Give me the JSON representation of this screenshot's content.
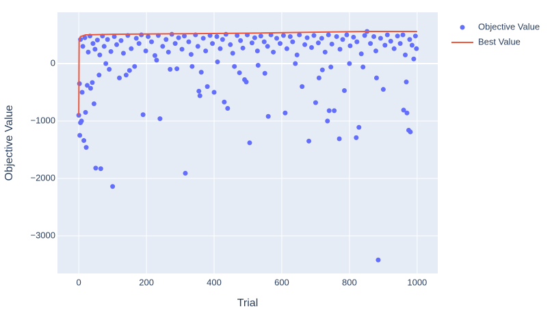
{
  "chart_data": {
    "type": "scatter",
    "xlabel": "Trial",
    "ylabel": "Objective Value",
    "xlim": [
      -63,
      1061
    ],
    "ylim": [
      -3655,
      893
    ],
    "xticks": [
      0,
      200,
      400,
      600,
      800,
      1000
    ],
    "yticks": [
      {
        "value": -3000,
        "label": "−3000"
      },
      {
        "value": -2000,
        "label": "−2000"
      },
      {
        "value": -1000,
        "label": "−1000"
      },
      0
    ],
    "grid": true,
    "legend": "top-right",
    "series": [
      {
        "name": "Objective Value",
        "type": "scatter",
        "color": "#636efa",
        "x": [
          0,
          2,
          3,
          5,
          8,
          10,
          15,
          20,
          22,
          25,
          35,
          40,
          45,
          50,
          65,
          100,
          120,
          140,
          165,
          190,
          240,
          315,
          355,
          358,
          362,
          380,
          400,
          430,
          440,
          475,
          490,
          495,
          505,
          560,
          550,
          610,
          660,
          680,
          700,
          710,
          735,
          740,
          755,
          770,
          785,
          820,
          828,
          840,
          880,
          885,
          900,
          960,
          968,
          970,
          975,
          980,
          990,
          410,
          150,
          90,
          80,
          60,
          230,
          270,
          290,
          335,
          460,
          530,
          640,
          745,
          720,
          800,
          5,
          12,
          18,
          28,
          33,
          42,
          48,
          55,
          62,
          70,
          75,
          85,
          95,
          105,
          112,
          125,
          132,
          145,
          155,
          170,
          178,
          185,
          198,
          205,
          215,
          225,
          235,
          248,
          258,
          265,
          275,
          285,
          295,
          305,
          312,
          325,
          332,
          345,
          352,
          368,
          375,
          388,
          395,
          408,
          418,
          425,
          435,
          448,
          455,
          468,
          478,
          485,
          498,
          512,
          520,
          528,
          538,
          548,
          558,
          568,
          575,
          585,
          595,
          605,
          615,
          625,
          632,
          645,
          652,
          668,
          675,
          688,
          695,
          708,
          718,
          728,
          738,
          748,
          762,
          772,
          780,
          792,
          802,
          812,
          822,
          835,
          845,
          852,
          862,
          872,
          878,
          892,
          905,
          912,
          922,
          932,
          942,
          950,
          958,
          965,
          978,
          985,
          995,
          998
        ],
        "values": [
          -900,
          -350,
          -1250,
          -1030,
          -1000,
          -500,
          -1340,
          -850,
          -1460,
          -380,
          -430,
          -330,
          -700,
          -1820,
          -1830,
          -2140,
          -250,
          -200,
          -50,
          -890,
          -960,
          -1910,
          -480,
          -560,
          -150,
          -400,
          -500,
          -670,
          -780,
          -160,
          -280,
          -320,
          -1380,
          -920,
          -170,
          -860,
          -400,
          -1350,
          -680,
          -250,
          -1000,
          -820,
          -820,
          -1310,
          -470,
          -1290,
          -1110,
          -60,
          -250,
          -3420,
          -450,
          -810,
          -320,
          -860,
          -1160,
          -1190,
          80,
          30,
          -120,
          -100,
          0,
          -200,
          60,
          -100,
          -90,
          -50,
          -50,
          -30,
          0,
          -60,
          -110,
          0,
          420,
          300,
          450,
          200,
          480,
          350,
          250,
          410,
          150,
          480,
          300,
          420,
          210,
          470,
          330,
          400,
          180,
          490,
          260,
          440,
          350,
          500,
          220,
          470,
          380,
          140,
          490,
          300,
          420,
          200,
          510,
          350,
          450,
          250,
          480,
          380,
          160,
          500,
          300,
          440,
          220,
          490,
          350,
          470,
          260,
          420,
          510,
          330,
          180,
          490,
          400,
          270,
          500,
          360,
          450,
          220,
          480,
          380,
          300,
          500,
          200,
          440,
          350,
          490,
          260,
          470,
          380,
          150,
          500,
          330,
          450,
          280,
          490,
          360,
          440,
          200,
          500,
          340,
          470,
          250,
          420,
          500,
          310,
          460,
          380,
          170,
          490,
          560,
          350,
          470,
          220,
          440,
          320,
          500,
          390,
          260,
          480,
          350,
          500,
          150,
          420,
          320,
          480,
          260
        ]
      },
      {
        "name": "Best Value",
        "type": "line",
        "color": "#ef553b",
        "x": [
          0,
          1,
          5,
          20,
          100,
          300,
          500,
          850,
          1000
        ],
        "values": [
          -900,
          400,
          470,
          500,
          510,
          520,
          530,
          560,
          560
        ]
      }
    ]
  }
}
